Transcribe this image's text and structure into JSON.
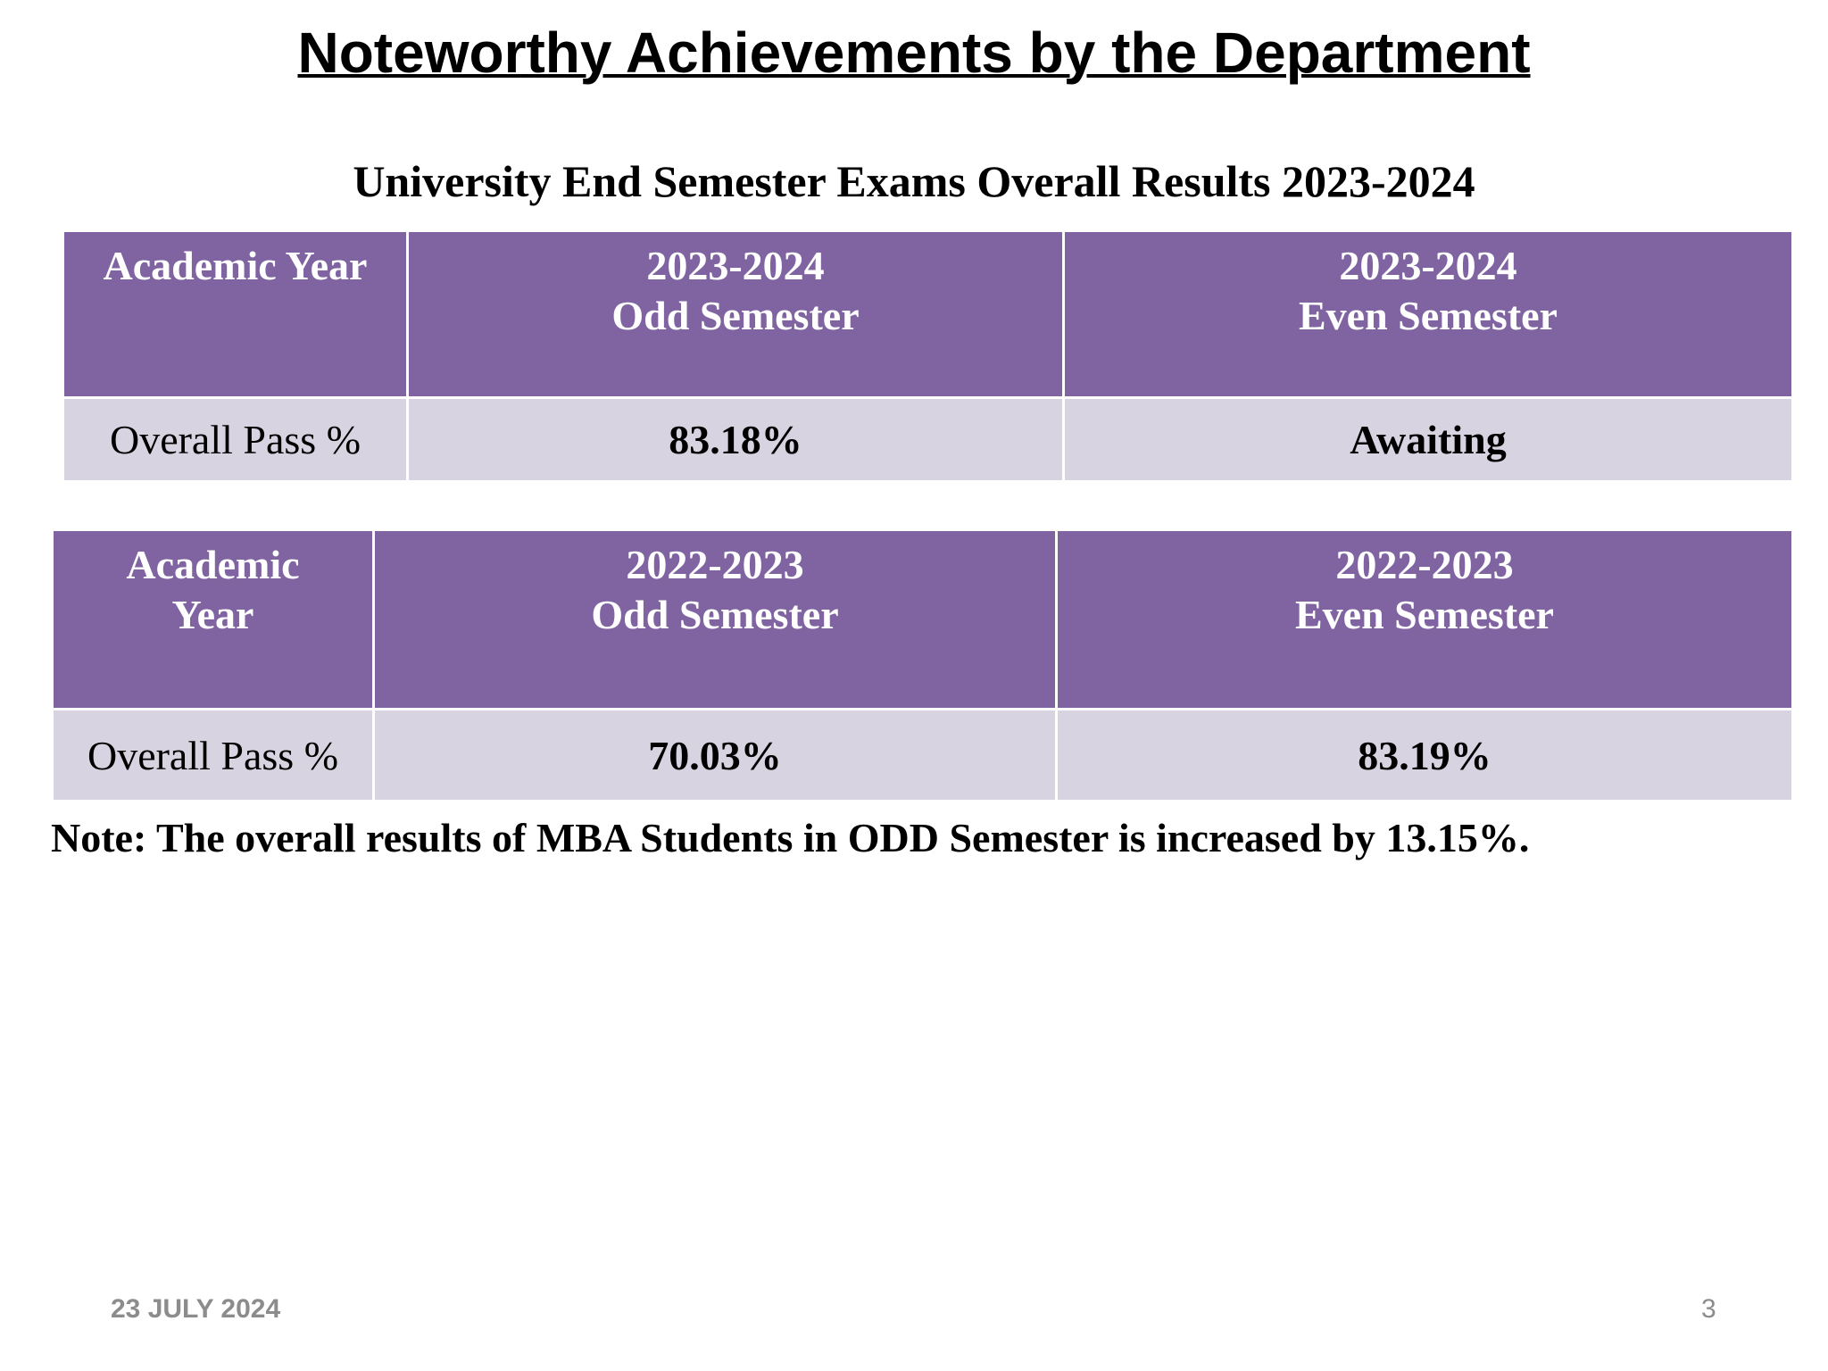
{
  "header": {
    "title": "Noteworthy Achievements by the Department",
    "subtitle": "University End Semester Exams Overall Results 2023-2024"
  },
  "tables": [
    {
      "header": [
        [
          "Academic Year"
        ],
        [
          "2023-2024",
          "Odd Semester"
        ],
        [
          "2023-2024",
          "Even Semester"
        ]
      ],
      "rows": [
        [
          "Overall Pass %",
          "83.18%",
          "Awaiting"
        ]
      ]
    },
    {
      "header": [
        [
          "Academic",
          "Year"
        ],
        [
          "2022-2023",
          "Odd Semester"
        ],
        [
          "2022-2023",
          "Even Semester"
        ]
      ],
      "rows": [
        [
          "Overall Pass %",
          "70.03%",
          "83.19%"
        ]
      ]
    }
  ],
  "note": "Note: The overall results of MBA Students in ODD Semester is increased by 13.15%.",
  "footer": {
    "date": "23 JULY 2024",
    "page": "3"
  }
}
